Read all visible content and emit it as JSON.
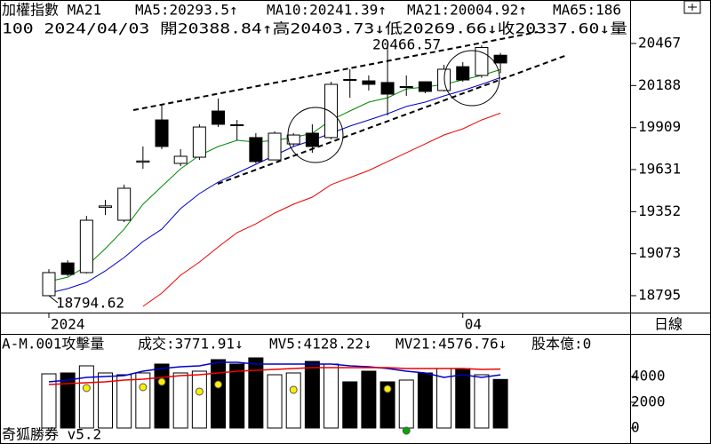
{
  "chart_data": [
    {
      "type": "candlestick",
      "title": "加權指數 MA21",
      "info": "100 2024/04/03 開20388.84↑高20403.73↓低20269.66↓收20337.60↓量",
      "high_label": "20466.57",
      "low_label": "18794.62",
      "categories": [
        "2024",
        null,
        null,
        null,
        null,
        null,
        null,
        null,
        null,
        null,
        null,
        null,
        null,
        null,
        null,
        null,
        null,
        null,
        null,
        null,
        null,
        null,
        "04",
        null,
        null
      ],
      "open": [
        18795,
        19012,
        18948,
        19380,
        19295,
        19680,
        19960,
        19672,
        19713,
        20019,
        19928,
        19843,
        19695,
        19801,
        19872,
        19843,
        20228,
        20219,
        20208,
        20175,
        20213,
        20155,
        20313,
        20255,
        20388.84
      ],
      "high": [
        18971,
        19030,
        19324,
        19430,
        19531,
        19784,
        20060,
        19766,
        19931,
        20102,
        19960,
        19872,
        19884,
        19872,
        19931,
        20213,
        20296,
        20255,
        20466.57,
        20255,
        20213,
        20325,
        20343,
        20455,
        20403.73
      ],
      "low": [
        18794.62,
        18924,
        18942,
        19330,
        19283,
        19636,
        19766,
        19654,
        19695,
        19913,
        19825,
        19672,
        19695,
        19784,
        19742,
        19831,
        20107,
        20155,
        19990,
        20119,
        20137,
        20149,
        20213,
        20240,
        20269.66
      ],
      "close": [
        18948,
        18936,
        19295,
        19390,
        19507,
        19688,
        19784,
        19719,
        19913,
        19931,
        19922,
        19684,
        19872,
        19860,
        19784,
        20196,
        20222,
        20196,
        20131,
        20181,
        20149,
        20296,
        20225,
        20440,
        20337.6
      ],
      "series": [
        {
          "name": "MA5:20293.5↑",
          "color": "#008800",
          "values": [
            18889,
            18918,
            18989,
            19107,
            19236,
            19401,
            19519,
            19636,
            19725,
            19784,
            19825,
            19813,
            19825,
            19843,
            19872,
            19960,
            20019,
            20078,
            20107,
            20166,
            20178,
            20196,
            20225,
            20255,
            20293.5
          ]
        },
        {
          "name": "MA10:20241.39↑",
          "color": "#0000cc",
          "values": [
            18812,
            18842,
            18883,
            18959,
            19048,
            19154,
            19236,
            19372,
            19472,
            19548,
            19607,
            19666,
            19725,
            19784,
            19825,
            19872,
            19919,
            19960,
            20001,
            20049,
            20078,
            20119,
            20155,
            20196,
            20241.39
          ]
        },
        {
          "name": "MA21:20004.92↑",
          "color": "#ee0000",
          "values": [
            null,
            null,
            null,
            null,
            null,
            18724,
            18812,
            18930,
            19018,
            19118,
            19213,
            19271,
            19342,
            19401,
            19448,
            19531,
            19578,
            19625,
            19684,
            19742,
            19801,
            19860,
            19901,
            19960,
            20004.92
          ]
        },
        {
          "name": "MA65:186",
          "color": "#ee00ee",
          "values": [
            null,
            null,
            null,
            null,
            null,
            null,
            null,
            null,
            null,
            null,
            null,
            null,
            null,
            null,
            null,
            null,
            null,
            null,
            null,
            null,
            null,
            null,
            null,
            null,
            null
          ]
        }
      ],
      "ylim": [
        18683,
        20755
      ],
      "yticks": [
        20467,
        20188,
        19909,
        19631,
        19352,
        19073,
        18795
      ]
    },
    {
      "type": "bar",
      "title": "A-M.001攻擊量",
      "note": {
        "text": "股本億:0",
        "color": "#ee00ee"
      },
      "series": [
        {
          "name": "成交:3771.91↓",
          "color": "#008800",
          "values": [
            4207,
            4276,
            4828,
            4276,
            4138,
            4276,
            4966,
            4276,
            4414,
            5310,
            4966,
            5448,
            4138,
            4276,
            5172,
            4966,
            3586,
            4414,
            3586,
            3724,
            4276,
            4621,
            4621,
            4138,
            3771.91
          ]
        },
        {
          "name": "MV5:4128.22↓",
          "color": "#0000cc",
          "values": [
            3586,
            3724,
            3931,
            4000,
            4069,
            4414,
            4621,
            4759,
            4828,
            5103,
            5103,
            4966,
            4966,
            4966,
            4966,
            4966,
            4828,
            4759,
            4621,
            4414,
            4276,
            3931,
            4138,
            3931,
            4128.22
          ]
        },
        {
          "name": "MV21:4576.76↓",
          "color": "#ee0000",
          "values": [
            3379,
            3448,
            3517,
            3586,
            3724,
            3793,
            3931,
            4069,
            4138,
            4276,
            4414,
            4483,
            4552,
            4621,
            4690,
            4690,
            4690,
            4690,
            4690,
            4621,
            4621,
            4621,
            4621,
            4552,
            4576.76
          ]
        }
      ],
      "markers": [
        {
          "color": "#ffee00",
          "values": [
            null,
            null,
            3103,
            null,
            null,
            3172,
            3586,
            null,
            2828,
            3379,
            null,
            null,
            null,
            2966,
            null,
            null,
            null,
            null,
            3034,
            null,
            null,
            null,
            null,
            null,
            null
          ]
        },
        {
          "color": "#00aa00",
          "values": [
            null,
            null,
            null,
            null,
            null,
            null,
            null,
            null,
            null,
            null,
            null,
            null,
            null,
            null,
            null,
            null,
            null,
            null,
            null,
            -207,
            null,
            null,
            null,
            null,
            null
          ]
        }
      ],
      "ylim": [
        -966,
        7172
      ],
      "yticks": [
        4000,
        2000,
        0
      ]
    }
  ],
  "ui": {
    "period": "日線",
    "footer": "奇狐勝券 v5.2"
  }
}
